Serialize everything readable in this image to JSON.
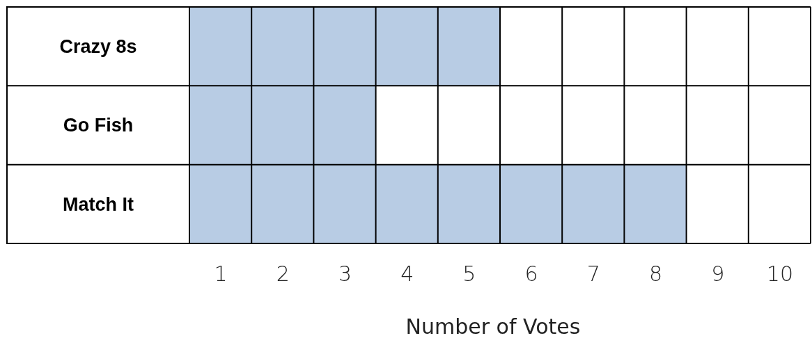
{
  "chart_data": {
    "type": "bar",
    "orientation": "horizontal",
    "categories": [
      "Crazy 8s",
      "Go Fish",
      "Match It"
    ],
    "values": [
      5,
      3,
      8
    ],
    "color": "#b8cce4",
    "xlim": [
      0,
      10
    ],
    "xticks": [
      {
        "value": 0.5,
        "label": "1"
      },
      {
        "value": 1.5,
        "label": "2"
      },
      {
        "value": 2.5,
        "label": "3"
      },
      {
        "value": 3.5,
        "label": "4"
      },
      {
        "value": 4.5,
        "label": "5"
      },
      {
        "value": 5.5,
        "label": "6"
      },
      {
        "value": 6.5,
        "label": "7"
      },
      {
        "value": 7.5,
        "label": "8"
      },
      {
        "value": 8.5,
        "label": "9"
      },
      {
        "value": 9.5,
        "label": "10"
      }
    ],
    "xlabel": "Number of Votes",
    "grid": true
  }
}
